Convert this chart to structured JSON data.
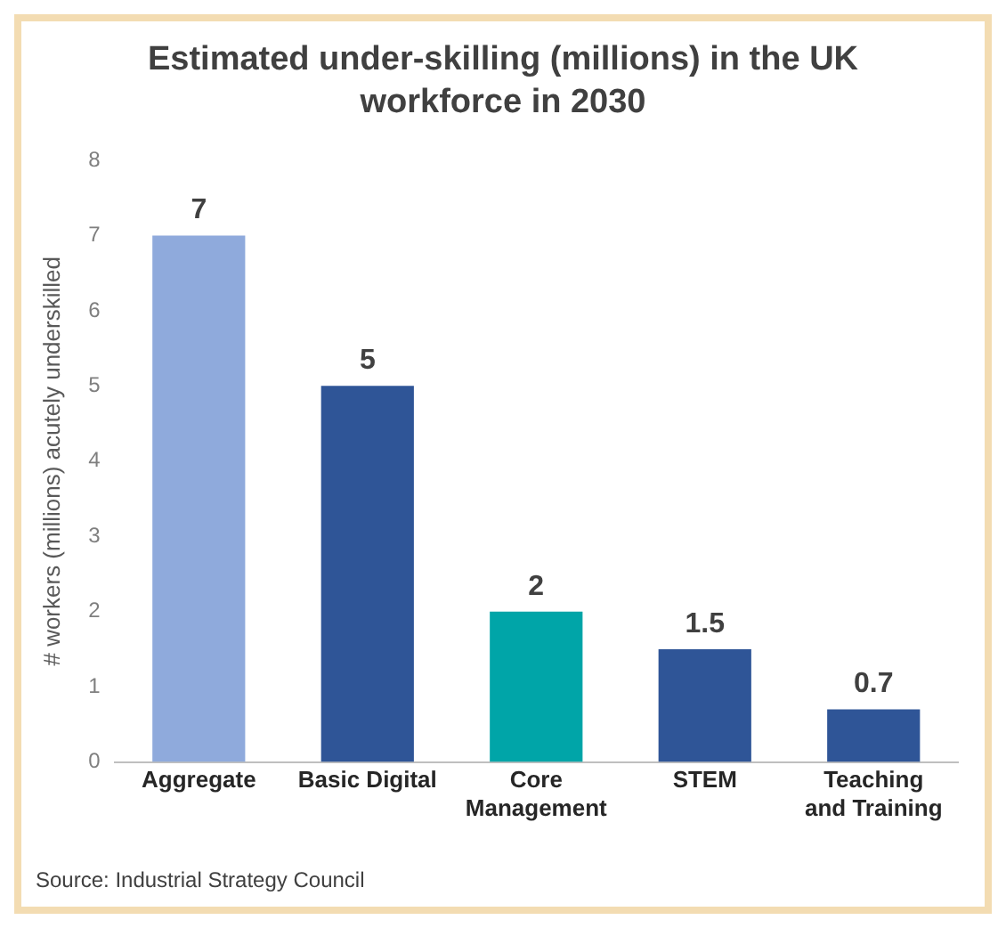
{
  "chart_data": {
    "type": "bar",
    "title": "Estimated under-skilling (millions) in the UK workforce in 2030",
    "ylabel": "# workers (millions) acutely underskilled",
    "categories": [
      "Aggregate",
      "Basic Digital",
      "Core Management",
      "STEM",
      "Teaching and Training"
    ],
    "values": [
      7,
      5,
      2,
      1.5,
      0.7
    ],
    "colors": [
      "#8faadc",
      "#2f5597",
      "#00a5a8",
      "#2f5597",
      "#2f5597"
    ],
    "ylim": [
      0,
      8
    ],
    "yticks": [
      0,
      1,
      2,
      3,
      4,
      5,
      6,
      7,
      8
    ],
    "grid": false,
    "legend": false,
    "data_labels": true,
    "annotations": [
      "Source: Industrial Strategy Council"
    ]
  }
}
